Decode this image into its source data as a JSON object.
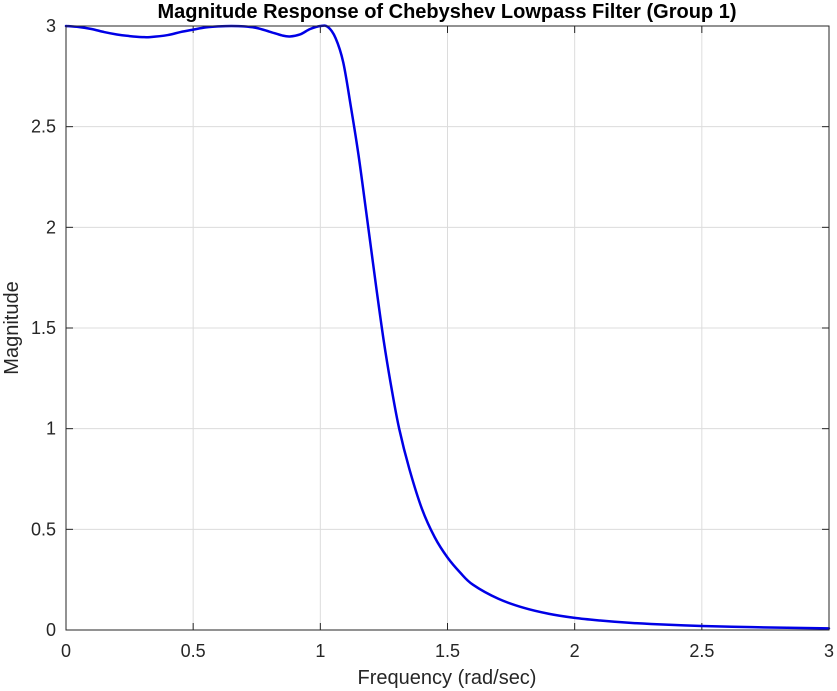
{
  "chart_data": {
    "type": "line",
    "title": "Magnitude Response of Chebyshev Lowpass Filter (Group 1)",
    "xlabel": "Frequency (rad/sec)",
    "ylabel": "Magnitude",
    "xlim": [
      0,
      3
    ],
    "ylim": [
      0,
      3
    ],
    "grid": true,
    "x_ticks": [
      0,
      0.5,
      1,
      1.5,
      2,
      2.5,
      3
    ],
    "x_tick_labels": [
      "0",
      "0.5",
      "1",
      "1.5",
      "2",
      "2.5",
      "3"
    ],
    "y_ticks": [
      0,
      0.5,
      1,
      1.5,
      2,
      2.5,
      3
    ],
    "y_tick_labels": [
      "0",
      "0.5",
      "1",
      "1.5",
      "2",
      "2.5",
      "3"
    ],
    "series": [
      {
        "color": "#0000e6",
        "x": [
          0,
          0.05,
          0.1,
          0.15,
          0.2,
          0.25,
          0.3,
          0.33,
          0.4,
          0.45,
          0.5,
          0.55,
          0.6,
          0.65,
          0.7,
          0.75,
          0.8,
          0.85,
          0.88,
          0.92,
          0.96,
          1.0,
          1.03,
          1.06,
          1.09,
          1.12,
          1.15,
          1.18,
          1.2,
          1.22,
          1.25,
          1.28,
          1.31,
          1.35,
          1.4,
          1.45,
          1.5,
          1.55,
          1.6,
          1.7,
          1.8,
          1.9,
          2.0,
          2.1,
          2.2,
          2.3,
          2.5,
          2.7,
          2.9,
          3.0
        ],
        "y": [
          3.0,
          2.995,
          2.985,
          2.97,
          2.958,
          2.95,
          2.945,
          2.945,
          2.955,
          2.97,
          2.982,
          2.993,
          2.998,
          3.0,
          2.998,
          2.99,
          2.972,
          2.953,
          2.948,
          2.958,
          2.985,
          3.0,
          2.995,
          2.94,
          2.82,
          2.6,
          2.36,
          2.08,
          1.89,
          1.7,
          1.43,
          1.2,
          1.0,
          0.8,
          0.6,
          0.46,
          0.36,
          0.285,
          0.225,
          0.155,
          0.11,
          0.08,
          0.06,
          0.047,
          0.037,
          0.03,
          0.02,
          0.014,
          0.01,
          0.008
        ]
      }
    ]
  }
}
